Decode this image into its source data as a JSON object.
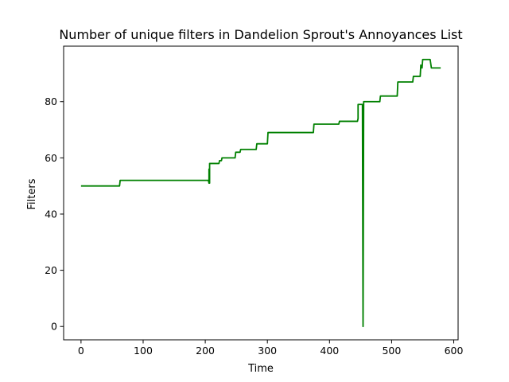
{
  "chart_data": {
    "type": "line",
    "title": "Number of unique filters in Dandelion Sprout's Annoyances List",
    "xlabel": "Time",
    "ylabel": "Filters",
    "xlim": [
      -28,
      607
    ],
    "ylim": [
      -4.75,
      99.75
    ],
    "xticks": [
      0,
      100,
      200,
      300,
      400,
      500,
      600
    ],
    "yticks": [
      0,
      20,
      40,
      60,
      80
    ],
    "grid": false,
    "color": "#008000",
    "series": [
      {
        "points": [
          [
            0,
            50
          ],
          [
            62,
            50
          ],
          [
            63,
            52
          ],
          [
            205,
            52
          ],
          [
            206,
            51
          ],
          [
            206,
            56
          ],
          [
            207,
            51
          ],
          [
            207,
            58
          ],
          [
            222,
            58
          ],
          [
            223,
            59
          ],
          [
            226,
            59
          ],
          [
            227,
            60
          ],
          [
            248,
            60
          ],
          [
            249,
            62
          ],
          [
            256,
            62
          ],
          [
            257,
            63
          ],
          [
            282,
            63
          ],
          [
            283,
            65
          ],
          [
            300,
            65
          ],
          [
            301,
            69
          ],
          [
            374,
            69
          ],
          [
            375,
            72
          ],
          [
            415,
            72
          ],
          [
            416,
            73
          ],
          [
            445,
            73
          ],
          [
            446,
            74
          ],
          [
            446,
            79
          ],
          [
            453,
            79
          ],
          [
            454,
            0
          ],
          [
            455,
            80
          ],
          [
            481,
            80
          ],
          [
            482,
            82
          ],
          [
            509,
            82
          ],
          [
            510,
            87
          ],
          [
            534,
            87
          ],
          [
            535,
            89
          ],
          [
            546,
            89
          ],
          [
            547,
            93
          ],
          [
            549,
            92
          ],
          [
            550,
            95
          ],
          [
            562,
            95
          ],
          [
            564,
            92
          ],
          [
            579,
            92
          ]
        ]
      }
    ]
  }
}
